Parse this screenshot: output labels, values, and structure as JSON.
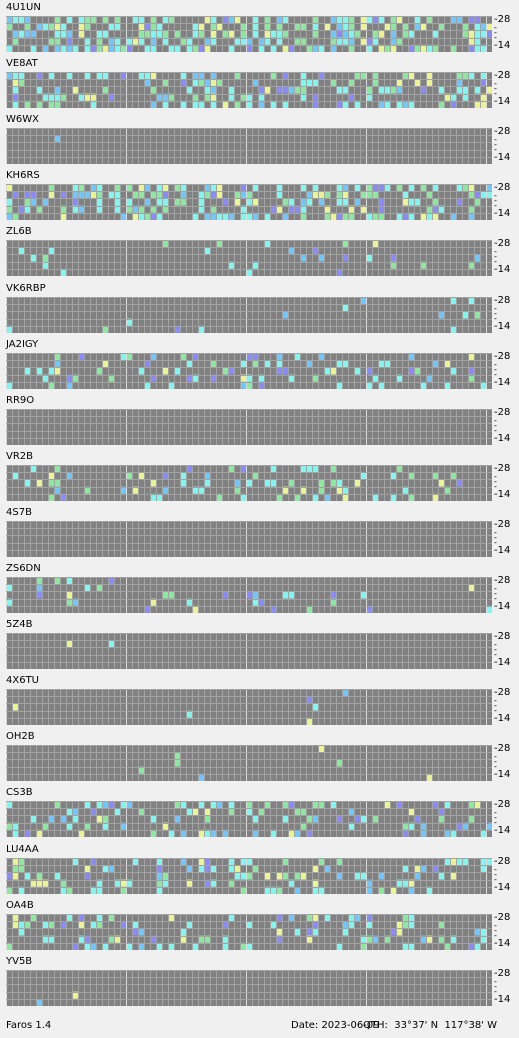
{
  "app": {
    "version": "Faros 1.4"
  },
  "status": {
    "date": "Date: 2023-06-09",
    "qth": "QTH:  33°37' N  117°38' W"
  },
  "scale": {
    "top": "28",
    "bottom": "14",
    "mid": "-\n-\n-"
  },
  "colors": {
    "background": "#f0f0f0",
    "grid": "#7c7c7c",
    "cell_empty": "#818181",
    "cell_line": "#a3a3a3",
    "weak": "#8ae99e",
    "medium": "#7ef7f0",
    "strong": "#6ec7ff",
    "faint": "#8a8aff",
    "yellow": "#eaf590",
    "gray": "#9c9c9c"
  },
  "beacons": [
    {
      "name": "4U1UN",
      "density": 0.55,
      "seed": 11
    },
    {
      "name": "VE8AT",
      "density": 0.3,
      "seed": 23
    },
    {
      "name": "W6WX",
      "density": 0.01,
      "seed": 37
    },
    {
      "name": "KH6RS",
      "density": 0.42,
      "seed": 41
    },
    {
      "name": "ZL6B",
      "density": 0.07,
      "seed": 53
    },
    {
      "name": "VK6RBP",
      "density": 0.04,
      "seed": 61
    },
    {
      "name": "JA2IGY",
      "density": 0.22,
      "seed": 73
    },
    {
      "name": "RR9O",
      "density": 0.0,
      "seed": 79
    },
    {
      "name": "VR2B",
      "density": 0.18,
      "seed": 83
    },
    {
      "name": "4S7B",
      "density": 0.0,
      "seed": 89
    },
    {
      "name": "ZS6DN",
      "density": 0.08,
      "seed": 97
    },
    {
      "name": "5Z4B",
      "density": 0.005,
      "seed": 101
    },
    {
      "name": "4X6TU",
      "density": 0.02,
      "seed": 103
    },
    {
      "name": "OH2B",
      "density": 0.01,
      "seed": 107
    },
    {
      "name": "CS3B",
      "density": 0.28,
      "seed": 109
    },
    {
      "name": "LU4AA",
      "density": 0.25,
      "seed": 113
    },
    {
      "name": "OA4B",
      "density": 0.24,
      "seed": 127
    },
    {
      "name": "YV5B",
      "density": 0.005,
      "seed": 131
    }
  ]
}
